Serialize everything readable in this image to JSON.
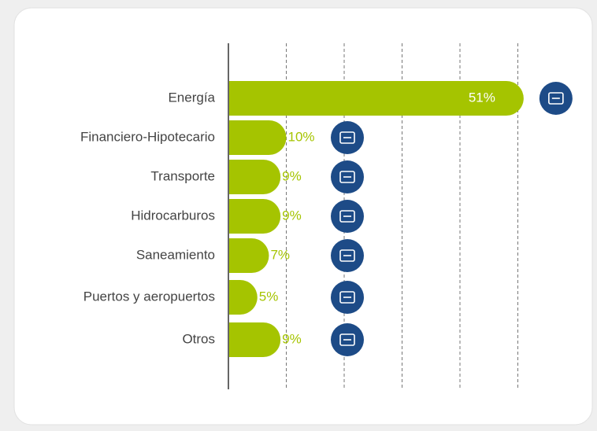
{
  "chart_data": {
    "type": "bar",
    "orientation": "horizontal",
    "categories": [
      "Energía",
      "Financiero-Hipotecario",
      "Transporte",
      "Hidrocarburos",
      "Saneamiento",
      "Puertos y aeropuertos",
      "Otros"
    ],
    "values": [
      51,
      10,
      9,
      9,
      7,
      5,
      9
    ],
    "value_labels": [
      "51%",
      "10%",
      "9%",
      "9%",
      "7%",
      "5%",
      "9%"
    ],
    "color": "#a5c400",
    "xlim": [
      0,
      60
    ],
    "xticks": [
      10,
      20,
      30,
      40,
      50
    ],
    "grid": true
  }
}
